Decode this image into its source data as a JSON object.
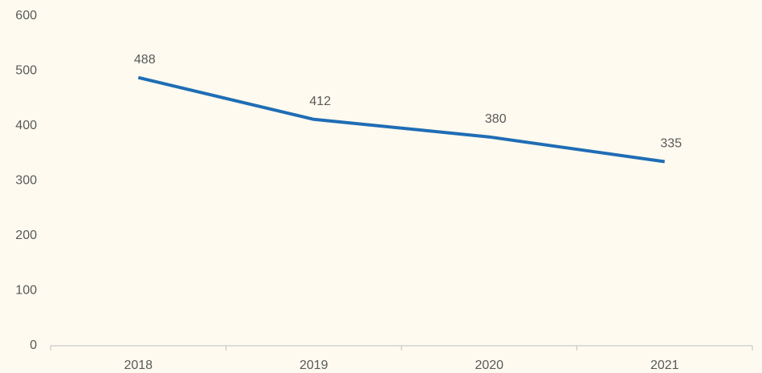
{
  "chart_data": {
    "type": "line",
    "categories": [
      "2018",
      "2019",
      "2020",
      "2021"
    ],
    "values": [
      488,
      412,
      380,
      335
    ],
    "color": "#1f6db5",
    "ylim": [
      0,
      600
    ],
    "yticks": [
      0,
      100,
      200,
      300,
      400,
      500,
      600
    ],
    "grid": false
  }
}
